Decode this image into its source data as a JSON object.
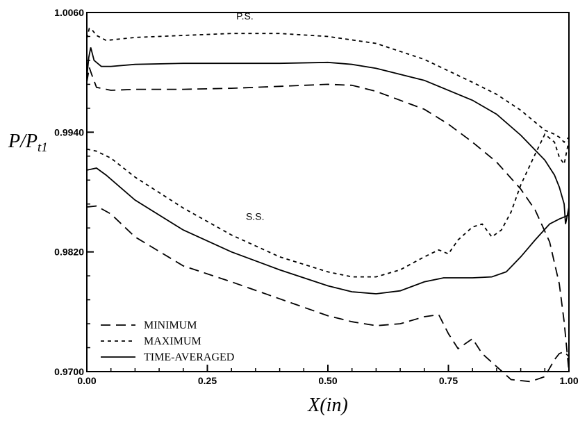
{
  "chart_data": {
    "type": "line",
    "title": "",
    "xlabel": "X(in)",
    "ylabel": "P/P_t1",
    "ylabel_parts": {
      "main": "P/P",
      "sub": "t1"
    },
    "xlim": [
      0.0,
      1.0
    ],
    "ylim": [
      0.97,
      1.006
    ],
    "x_ticks": [
      "0.00",
      "0.25",
      "0.50",
      "0.75",
      "1.00"
    ],
    "y_ticks": [
      "0.9700",
      "0.9820",
      "0.9940",
      "1.0060"
    ],
    "grid": false,
    "legend_position": "bottom-left",
    "annotations": [
      {
        "text": "P.S.",
        "x": 0.31,
        "y": 1.0053
      },
      {
        "text": "S.S.",
        "x": 0.33,
        "y": 0.9852
      }
    ],
    "legend": [
      {
        "label": "MINIMUM",
        "style": "dashed"
      },
      {
        "label": "MAXIMUM",
        "style": "dotted"
      },
      {
        "label": "TIME-AVERAGED",
        "style": "solid"
      }
    ],
    "series": [
      {
        "name": "MAXIMUM",
        "surface": "P.S.",
        "style": "dotted",
        "x": [
          0.0,
          0.005,
          0.012,
          0.02,
          0.04,
          0.1,
          0.2,
          0.3,
          0.4,
          0.5,
          0.6,
          0.7,
          0.8,
          0.85,
          0.9,
          0.93,
          0.95,
          0.97,
          0.98,
          0.99,
          1.0
        ],
        "y": [
          1.0034,
          1.0044,
          1.0042,
          1.0037,
          1.0032,
          1.0035,
          1.0037,
          1.0039,
          1.0039,
          1.0036,
          1.0029,
          1.0013,
          0.999,
          0.9978,
          0.9962,
          0.995,
          0.9942,
          0.9938,
          0.9935,
          0.993,
          0.9935
        ]
      },
      {
        "name": "TIME-AVERAGED",
        "surface": "P.S.",
        "style": "solid",
        "x": [
          0.0,
          0.004,
          0.008,
          0.015,
          0.03,
          0.05,
          0.1,
          0.2,
          0.3,
          0.4,
          0.5,
          0.55,
          0.6,
          0.7,
          0.8,
          0.85,
          0.9,
          0.95,
          0.97,
          0.98,
          0.99,
          0.993,
          0.996,
          1.0
        ],
        "y": [
          0.9995,
          1.0015,
          1.0025,
          1.0012,
          1.0006,
          1.0006,
          1.0008,
          1.0009,
          1.0009,
          1.0009,
          1.001,
          1.0008,
          1.0004,
          0.9992,
          0.9972,
          0.9958,
          0.9937,
          0.9912,
          0.9897,
          0.9885,
          0.9868,
          0.9848,
          0.9855,
          0.9865
        ]
      },
      {
        "name": "MINIMUM",
        "surface": "P.S.",
        "style": "dashed",
        "x": [
          0.0,
          0.005,
          0.01,
          0.02,
          0.05,
          0.1,
          0.2,
          0.3,
          0.4,
          0.5,
          0.55,
          0.6,
          0.7,
          0.75,
          0.8,
          0.85,
          0.9,
          0.93,
          0.96,
          0.98,
          0.99,
          1.0
        ],
        "y": [
          0.999,
          1.0005,
          0.9998,
          0.9985,
          0.9982,
          0.9983,
          0.9983,
          0.9984,
          0.9986,
          0.9988,
          0.9987,
          0.9981,
          0.9963,
          0.9948,
          0.993,
          0.991,
          0.9883,
          0.9862,
          0.983,
          0.9788,
          0.975,
          0.97
        ]
      },
      {
        "name": "MAXIMUM",
        "surface": "S.S.",
        "style": "dotted",
        "x": [
          0.0,
          0.02,
          0.05,
          0.1,
          0.2,
          0.3,
          0.4,
          0.5,
          0.55,
          0.6,
          0.65,
          0.7,
          0.73,
          0.75,
          0.77,
          0.8,
          0.82,
          0.84,
          0.86,
          0.88,
          0.9,
          0.93,
          0.95,
          0.97,
          0.98,
          0.99,
          1.0
        ],
        "y": [
          0.9923,
          0.9921,
          0.9914,
          0.9895,
          0.9864,
          0.9837,
          0.9815,
          0.98,
          0.9795,
          0.9795,
          0.9802,
          0.9815,
          0.9822,
          0.9818,
          0.9832,
          0.9845,
          0.9848,
          0.9835,
          0.9842,
          0.986,
          0.9887,
          0.9918,
          0.9938,
          0.993,
          0.9915,
          0.9908,
          0.9932
        ]
      },
      {
        "name": "TIME-AVERAGED",
        "surface": "S.S.",
        "style": "solid",
        "x": [
          0.0,
          0.02,
          0.04,
          0.1,
          0.2,
          0.3,
          0.4,
          0.5,
          0.55,
          0.6,
          0.65,
          0.7,
          0.74,
          0.8,
          0.84,
          0.87,
          0.9,
          0.93,
          0.96,
          0.98,
          0.99,
          1.0
        ],
        "y": [
          0.9902,
          0.9904,
          0.9897,
          0.9872,
          0.9842,
          0.982,
          0.9802,
          0.9786,
          0.978,
          0.9778,
          0.9781,
          0.979,
          0.9794,
          0.9794,
          0.9795,
          0.98,
          0.9815,
          0.9832,
          0.9848,
          0.9853,
          0.9855,
          0.9857
        ]
      },
      {
        "name": "MINIMUM",
        "surface": "S.S.",
        "style": "dashed",
        "x": [
          0.0,
          0.02,
          0.05,
          0.1,
          0.2,
          0.3,
          0.4,
          0.5,
          0.55,
          0.6,
          0.65,
          0.7,
          0.73,
          0.75,
          0.77,
          0.8,
          0.82,
          0.85,
          0.88,
          0.92,
          0.95,
          0.97,
          0.98,
          0.99,
          1.0
        ],
        "y": [
          0.9865,
          0.9866,
          0.9858,
          0.9835,
          0.9806,
          0.979,
          0.9773,
          0.9756,
          0.975,
          0.9746,
          0.9748,
          0.9755,
          0.9757,
          0.9738,
          0.9723,
          0.9733,
          0.9718,
          0.9705,
          0.9692,
          0.969,
          0.9695,
          0.9712,
          0.9718,
          0.972,
          0.9715
        ]
      }
    ]
  }
}
